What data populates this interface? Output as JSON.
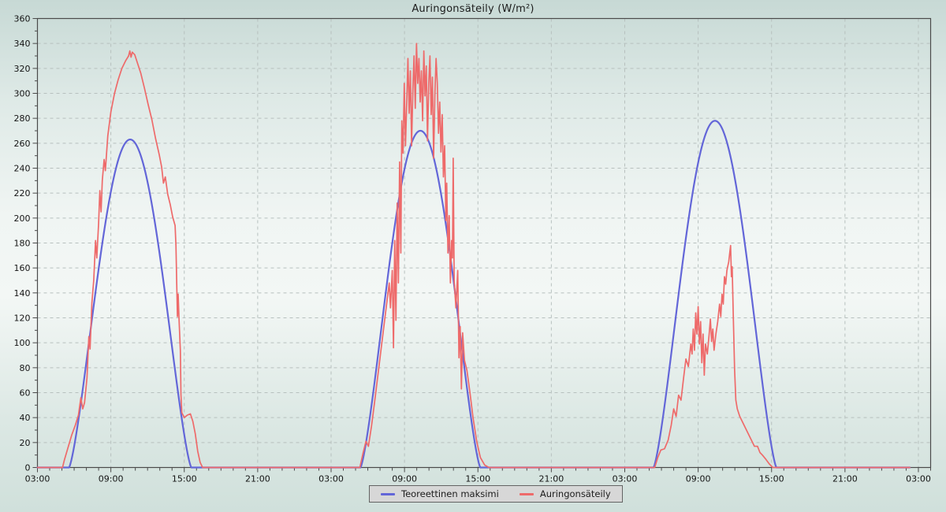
{
  "chart_data": {
    "type": "line",
    "title": "Auringonsäteily (W/m²)",
    "xlabel": "",
    "ylabel": "",
    "x_axis": {
      "hours_total": 73,
      "major_tick_hours": 6,
      "minor_tick_hours": 1,
      "tick_labels": [
        "03:00",
        "09:00",
        "15:00",
        "21:00",
        "03:00",
        "09:00",
        "15:00",
        "21:00",
        "03:00",
        "09:00",
        "15:00",
        "21:00",
        "03:00"
      ]
    },
    "y_axis": {
      "min": 0,
      "max": 360,
      "label_step": 20,
      "minor_step": 10
    },
    "grid": {
      "color": "#b7c0be",
      "dash": "4 4",
      "show": true
    },
    "axis_color": "#4a4a4a",
    "tick_label_color": "#141414",
    "data_end_hour": 71.3,
    "series": [
      {
        "name": "Teoreettinen maksimi",
        "color": "#6366d8",
        "stroke_width": 2.2,
        "model": "solar_arch",
        "arch_power": 1.35,
        "arches": [
          {
            "rise": 2.58,
            "set": 12.58,
            "peak": 263
          },
          {
            "rise": 26.4,
            "set": 36.2,
            "peak": 270
          },
          {
            "rise": 50.35,
            "set": 60.4,
            "peak": 278
          }
        ]
      },
      {
        "name": "Auringonsäteily",
        "color": "#ee6a6a",
        "stroke_width": 1.7,
        "model": "points",
        "points": [
          [
            0,
            0
          ],
          [
            2.05,
            0
          ],
          [
            2.2,
            6
          ],
          [
            2.5,
            16
          ],
          [
            2.8,
            26
          ],
          [
            3.1,
            34
          ],
          [
            3.35,
            42
          ],
          [
            3.55,
            56
          ],
          [
            3.7,
            47
          ],
          [
            3.85,
            52
          ],
          [
            4.05,
            72
          ],
          [
            4.2,
            105
          ],
          [
            4.3,
            95
          ],
          [
            4.45,
            132
          ],
          [
            4.6,
            150
          ],
          [
            4.75,
            182
          ],
          [
            4.85,
            168
          ],
          [
            5.0,
            196
          ],
          [
            5.1,
            222
          ],
          [
            5.2,
            205
          ],
          [
            5.3,
            230
          ],
          [
            5.45,
            247
          ],
          [
            5.55,
            238
          ],
          [
            5.75,
            266
          ],
          [
            6.0,
            285
          ],
          [
            6.3,
            300
          ],
          [
            6.6,
            311
          ],
          [
            6.9,
            320
          ],
          [
            7.2,
            326
          ],
          [
            7.45,
            330
          ],
          [
            7.55,
            334
          ],
          [
            7.65,
            329
          ],
          [
            7.75,
            333
          ],
          [
            7.95,
            331
          ],
          [
            8.15,
            325
          ],
          [
            8.45,
            316
          ],
          [
            8.75,
            304
          ],
          [
            9.05,
            291
          ],
          [
            9.35,
            279
          ],
          [
            9.65,
            264
          ],
          [
            9.95,
            251
          ],
          [
            10.15,
            241
          ],
          [
            10.3,
            228
          ],
          [
            10.45,
            233
          ],
          [
            10.65,
            219
          ],
          [
            10.85,
            211
          ],
          [
            11.05,
            201
          ],
          [
            11.25,
            194
          ],
          [
            11.32,
            178
          ],
          [
            11.38,
            149
          ],
          [
            11.44,
            121
          ],
          [
            11.5,
            139
          ],
          [
            11.58,
            117
          ],
          [
            11.68,
            94
          ],
          [
            11.73,
            58
          ],
          [
            11.8,
            44
          ],
          [
            12.0,
            40
          ],
          [
            12.25,
            42
          ],
          [
            12.5,
            43
          ],
          [
            12.7,
            37
          ],
          [
            12.9,
            27
          ],
          [
            13.1,
            13
          ],
          [
            13.3,
            4
          ],
          [
            13.5,
            0
          ],
          [
            26.35,
            0
          ],
          [
            26.6,
            11
          ],
          [
            26.85,
            21
          ],
          [
            27.05,
            17
          ],
          [
            27.3,
            33
          ],
          [
            27.55,
            52
          ],
          [
            27.8,
            72
          ],
          [
            28.05,
            92
          ],
          [
            28.3,
            112
          ],
          [
            28.55,
            132
          ],
          [
            28.75,
            148
          ],
          [
            28.85,
            128
          ],
          [
            29.0,
            158
          ],
          [
            29.1,
            96
          ],
          [
            29.2,
            182
          ],
          [
            29.3,
            118
          ],
          [
            29.4,
            212
          ],
          [
            29.5,
            148
          ],
          [
            29.6,
            245
          ],
          [
            29.7,
            172
          ],
          [
            29.78,
            278
          ],
          [
            29.88,
            252
          ],
          [
            29.98,
            308
          ],
          [
            30.08,
            258
          ],
          [
            30.18,
            292
          ],
          [
            30.28,
            328
          ],
          [
            30.38,
            284
          ],
          [
            30.48,
            318
          ],
          [
            30.58,
            258
          ],
          [
            30.68,
            302
          ],
          [
            30.78,
            330
          ],
          [
            30.88,
            288
          ],
          [
            30.98,
            340
          ],
          [
            31.08,
            308
          ],
          [
            31.18,
            328
          ],
          [
            31.28,
            293
          ],
          [
            31.38,
            318
          ],
          [
            31.48,
            278
          ],
          [
            31.58,
            334
          ],
          [
            31.68,
            298
          ],
          [
            31.78,
            322
          ],
          [
            31.88,
            262
          ],
          [
            31.98,
            308
          ],
          [
            32.08,
            330
          ],
          [
            32.18,
            283
          ],
          [
            32.28,
            313
          ],
          [
            32.38,
            248
          ],
          [
            32.48,
            298
          ],
          [
            32.58,
            328
          ],
          [
            32.68,
            308
          ],
          [
            32.78,
            268
          ],
          [
            32.88,
            293
          ],
          [
            32.98,
            253
          ],
          [
            33.08,
            283
          ],
          [
            33.18,
            233
          ],
          [
            33.28,
            258
          ],
          [
            33.38,
            198
          ],
          [
            33.45,
            228
          ],
          [
            33.55,
            172
          ],
          [
            33.65,
            202
          ],
          [
            33.75,
            148
          ],
          [
            33.85,
            182
          ],
          [
            33.92,
            168
          ],
          [
            33.98,
            248
          ],
          [
            34.06,
            150
          ],
          [
            34.2,
            128
          ],
          [
            34.35,
            158
          ],
          [
            34.45,
            88
          ],
          [
            34.55,
            113
          ],
          [
            34.65,
            63
          ],
          [
            34.75,
            108
          ],
          [
            34.9,
            86
          ],
          [
            35.1,
            78
          ],
          [
            35.35,
            60
          ],
          [
            35.6,
            40
          ],
          [
            35.9,
            21
          ],
          [
            36.2,
            8
          ],
          [
            36.55,
            2
          ],
          [
            36.9,
            0
          ],
          [
            50.45,
            0
          ],
          [
            50.7,
            8
          ],
          [
            50.95,
            14
          ],
          [
            51.25,
            15
          ],
          [
            51.55,
            22
          ],
          [
            51.8,
            34
          ],
          [
            52.0,
            47
          ],
          [
            52.2,
            41
          ],
          [
            52.4,
            58
          ],
          [
            52.6,
            54
          ],
          [
            52.8,
            71
          ],
          [
            53.0,
            87
          ],
          [
            53.2,
            81
          ],
          [
            53.4,
            99
          ],
          [
            53.5,
            91
          ],
          [
            53.6,
            111
          ],
          [
            53.7,
            94
          ],
          [
            53.8,
            124
          ],
          [
            53.9,
            107
          ],
          [
            54.0,
            129
          ],
          [
            54.1,
            99
          ],
          [
            54.2,
            117
          ],
          [
            54.3,
            84
          ],
          [
            54.4,
            107
          ],
          [
            54.5,
            74
          ],
          [
            54.6,
            99
          ],
          [
            54.75,
            91
          ],
          [
            54.9,
            107
          ],
          [
            55.0,
            119
          ],
          [
            55.1,
            101
          ],
          [
            55.2,
            111
          ],
          [
            55.3,
            94
          ],
          [
            55.45,
            107
          ],
          [
            55.6,
            117
          ],
          [
            55.75,
            131
          ],
          [
            55.85,
            121
          ],
          [
            55.95,
            139
          ],
          [
            56.05,
            131
          ],
          [
            56.15,
            153
          ],
          [
            56.25,
            147
          ],
          [
            56.35,
            158
          ],
          [
            56.5,
            165
          ],
          [
            56.65,
            178
          ],
          [
            56.72,
            153
          ],
          [
            56.78,
            161
          ],
          [
            56.88,
            118
          ],
          [
            56.98,
            78
          ],
          [
            57.08,
            54
          ],
          [
            57.2,
            47
          ],
          [
            57.4,
            41
          ],
          [
            57.7,
            35
          ],
          [
            58.0,
            29
          ],
          [
            58.3,
            23
          ],
          [
            58.6,
            17
          ],
          [
            58.85,
            17
          ],
          [
            59.05,
            12
          ],
          [
            59.25,
            10
          ],
          [
            59.5,
            7
          ],
          [
            59.8,
            3
          ],
          [
            60.1,
            0
          ],
          [
            71.3,
            0
          ]
        ]
      }
    ],
    "legend_position": "bottom-center"
  },
  "legend": {
    "items": [
      {
        "label": "Teoreettinen maksimi",
        "color": "#6366d8"
      },
      {
        "label": "Auringonsäteily",
        "color": "#ee6a6a"
      }
    ]
  }
}
